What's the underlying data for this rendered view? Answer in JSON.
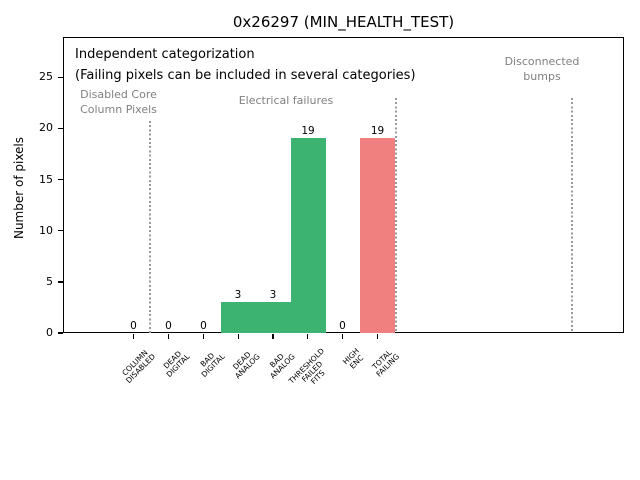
{
  "title": "0x26297 (MIN_HEALTH_TEST)",
  "notes": {
    "line1": "Independent categorization",
    "line2": "(Failing pixels can be included in several categories)"
  },
  "regions": [
    {
      "label": "Disabled Core\nColumn Pixels"
    },
    {
      "label": "Electrical failures"
    },
    {
      "label": "Disconnected\nbumps"
    }
  ],
  "colors": {
    "pass_bar_green": "#3CB371",
    "fail_bar_red": "#F08080",
    "region_label_gray": "#808080",
    "separator_dotted_gray": "#999999"
  },
  "chart_data": {
    "type": "bar",
    "title": "0x26297 (MIN_HEALTH_TEST)",
    "xlabel": "",
    "ylabel": "Number of pixels",
    "categories": [
      "COLUMN\nDISABLED",
      "DEAD\nDIGITAL",
      "BAD\nDIGITAL",
      "DEAD\nANALOG",
      "BAD\nANALOG",
      "THRESHOLD\nFAILED\nFITS",
      "HIGH\nENC",
      "TOTAL\nFAILING"
    ],
    "values": [
      0,
      0,
      0,
      3,
      3,
      19,
      0,
      19
    ],
    "bar_colors": [
      "#3CB371",
      "#3CB371",
      "#3CB371",
      "#3CB371",
      "#3CB371",
      "#3CB371",
      "#3CB371",
      "#F08080"
    ],
    "bar_label_values": [
      0,
      0,
      0,
      3,
      3,
      19,
      0,
      19
    ],
    "yticks": [
      0,
      5,
      10,
      15,
      20,
      25
    ],
    "ylim": [
      0,
      28.9
    ],
    "grid": false,
    "legend": "none",
    "annotations": [
      {
        "text": "Independent categorization",
        "color": "#000000"
      },
      {
        "text": "(Failing pixels can be included in several categories)",
        "color": "#000000"
      },
      {
        "text": "Disabled Core\nColumn Pixels",
        "color": "#808080"
      },
      {
        "text": "Electrical failures",
        "color": "#808080"
      },
      {
        "text": "Disconnected\nbumps",
        "color": "#808080"
      }
    ],
    "separators": {
      "style": "dotted",
      "color": "#999999",
      "count": 3
    }
  }
}
